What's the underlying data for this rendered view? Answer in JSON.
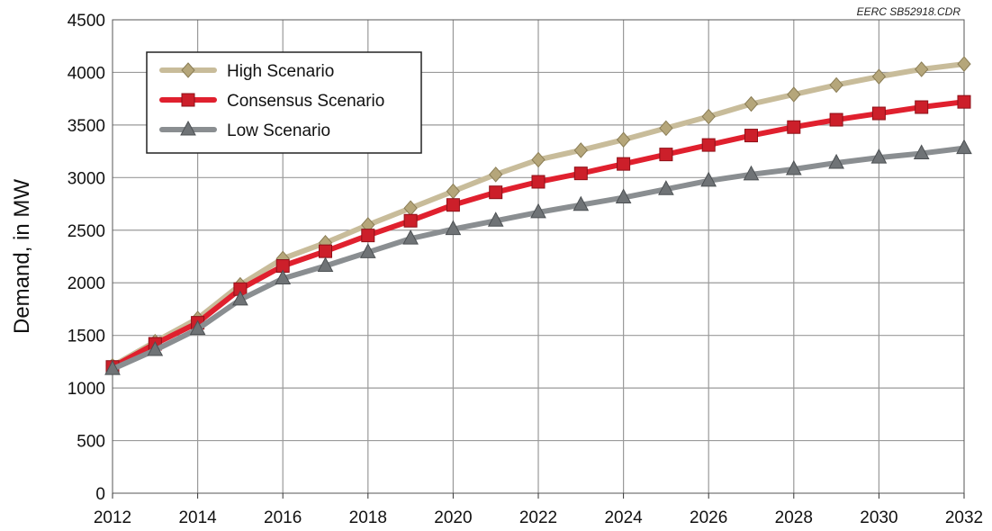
{
  "credit": "EERC SB52918.CDR",
  "chart_data": {
    "type": "line",
    "title": "",
    "xlabel": "",
    "ylabel": "Demand, in MW",
    "x": [
      2012,
      2013,
      2014,
      2015,
      2016,
      2017,
      2018,
      2019,
      2020,
      2021,
      2022,
      2023,
      2024,
      2025,
      2026,
      2027,
      2028,
      2029,
      2030,
      2031,
      2032
    ],
    "xlim": [
      2012,
      2032
    ],
    "ylim": [
      0,
      4500
    ],
    "xticks": [
      "2012",
      "2014",
      "2016",
      "2018",
      "2020",
      "2022",
      "2024",
      "2026",
      "2028",
      "2030",
      "2032"
    ],
    "yticks": [
      "0",
      "500",
      "1000",
      "1500",
      "2000",
      "2500",
      "3000",
      "3500",
      "4000",
      "4500"
    ],
    "grid": true,
    "legend_position": "top-left",
    "series": [
      {
        "name": "High Scenario",
        "color": "#c8bc9a",
        "marker_color": "#b5a67a",
        "marker": "diamond",
        "values": [
          1210,
          1440,
          1660,
          1980,
          2230,
          2380,
          2550,
          2710,
          2870,
          3030,
          3170,
          3260,
          3360,
          3470,
          3580,
          3700,
          3790,
          3880,
          3960,
          4030,
          4080
        ]
      },
      {
        "name": "Consensus Scenario",
        "color": "#e0202e",
        "marker_color": "#cc1f2a",
        "marker": "square",
        "values": [
          1200,
          1420,
          1620,
          1940,
          2160,
          2300,
          2450,
          2590,
          2740,
          2860,
          2960,
          3040,
          3130,
          3220,
          3310,
          3400,
          3480,
          3550,
          3610,
          3670,
          3720
        ]
      },
      {
        "name": "Low Scenario",
        "color": "#8a8e91",
        "marker_color": "#6f7376",
        "marker": "triangle",
        "values": [
          1180,
          1360,
          1560,
          1840,
          2040,
          2160,
          2290,
          2420,
          2510,
          2590,
          2670,
          2740,
          2810,
          2890,
          2970,
          3030,
          3080,
          3140,
          3190,
          3230,
          3280
        ]
      }
    ]
  }
}
